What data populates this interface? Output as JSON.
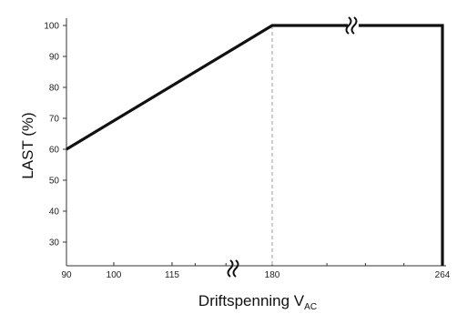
{
  "chart_data": {
    "type": "line",
    "title": "",
    "xlabel": "Driftspenning V",
    "xlabel_subscript": "AC",
    "ylabel": "LAST (%)",
    "x_tick_labels": [
      "90",
      "100",
      "115",
      "180",
      "264"
    ],
    "x_ticks": [
      90,
      100,
      115,
      180,
      264
    ],
    "x_minor_ticks": [
      130,
      150,
      207,
      226,
      245
    ],
    "y_ticks": [
      30,
      40,
      50,
      60,
      70,
      80,
      90,
      100
    ],
    "y_tick_labels": [
      "30",
      "40",
      "50",
      "60",
      "70",
      "80",
      "90",
      "100"
    ],
    "ylim": [
      23,
      103
    ],
    "xlim": [
      90,
      264
    ],
    "axis_breaks": [
      {
        "axis": "x",
        "near": "between 115 and 180",
        "symbol": "≈"
      },
      {
        "axis": "series",
        "near": "top segment between 180 and 264",
        "symbol": "≈"
      }
    ],
    "reference_lines": [
      {
        "type": "vertical",
        "x": 180,
        "style": "dashed",
        "from_y": 23,
        "to_y": 100
      }
    ],
    "series": [
      {
        "points": [
          {
            "x": 90,
            "y": 60
          },
          {
            "x": 180,
            "y": 100
          },
          {
            "x": 262,
            "y": 100
          },
          {
            "x": 262,
            "y": 23
          }
        ]
      }
    ],
    "grid": false,
    "colors": {
      "line": "#111111",
      "axis": "#333333",
      "reference": "#999999",
      "text": "#111111"
    }
  }
}
